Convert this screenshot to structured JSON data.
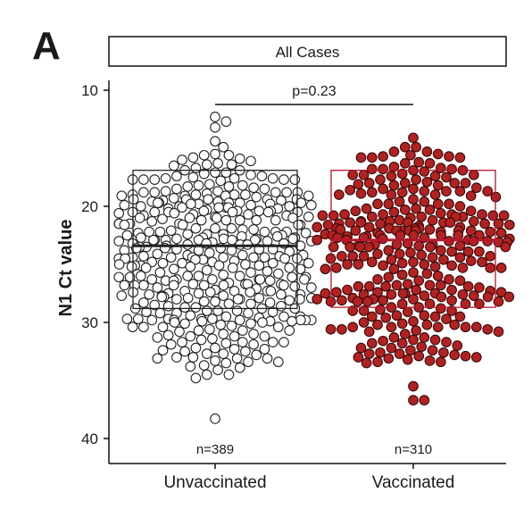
{
  "panel_label": "A",
  "chart_data": {
    "type": "beeswarm-boxplot",
    "facet_title": "All Cases",
    "ylabel": "N1 Ct value",
    "xlabel": "",
    "y_reversed": true,
    "ylim": [
      10,
      42
    ],
    "yticks": [
      10,
      20,
      30,
      40
    ],
    "categories": [
      "Unvaccinated",
      "Vaccinated"
    ],
    "annotation": {
      "text": "p=0.23",
      "between": [
        "Unvaccinated",
        "Vaccinated"
      ]
    },
    "grid": false,
    "legend": "none",
    "groups": [
      {
        "category": "Unvaccinated",
        "n_label": "n=389",
        "n": 389,
        "box": {
          "q1": 16.9,
          "median": 23.4,
          "q3": 28.8
        },
        "min_point": 12.3,
        "max_point": 38.3,
        "point_fill": "#ffffff",
        "point_stroke": "#222222",
        "box_color": "#222222"
      },
      {
        "category": "Vaccinated",
        "n_label": "n=310",
        "n": 310,
        "box": {
          "q1": 16.9,
          "median": 22.9,
          "q3": 28.7
        },
        "min_point": 14.1,
        "max_point": 36.7,
        "point_fill": "#b22222",
        "point_stroke": "#3a0a0a",
        "box_color": "#b5182a"
      }
    ]
  }
}
